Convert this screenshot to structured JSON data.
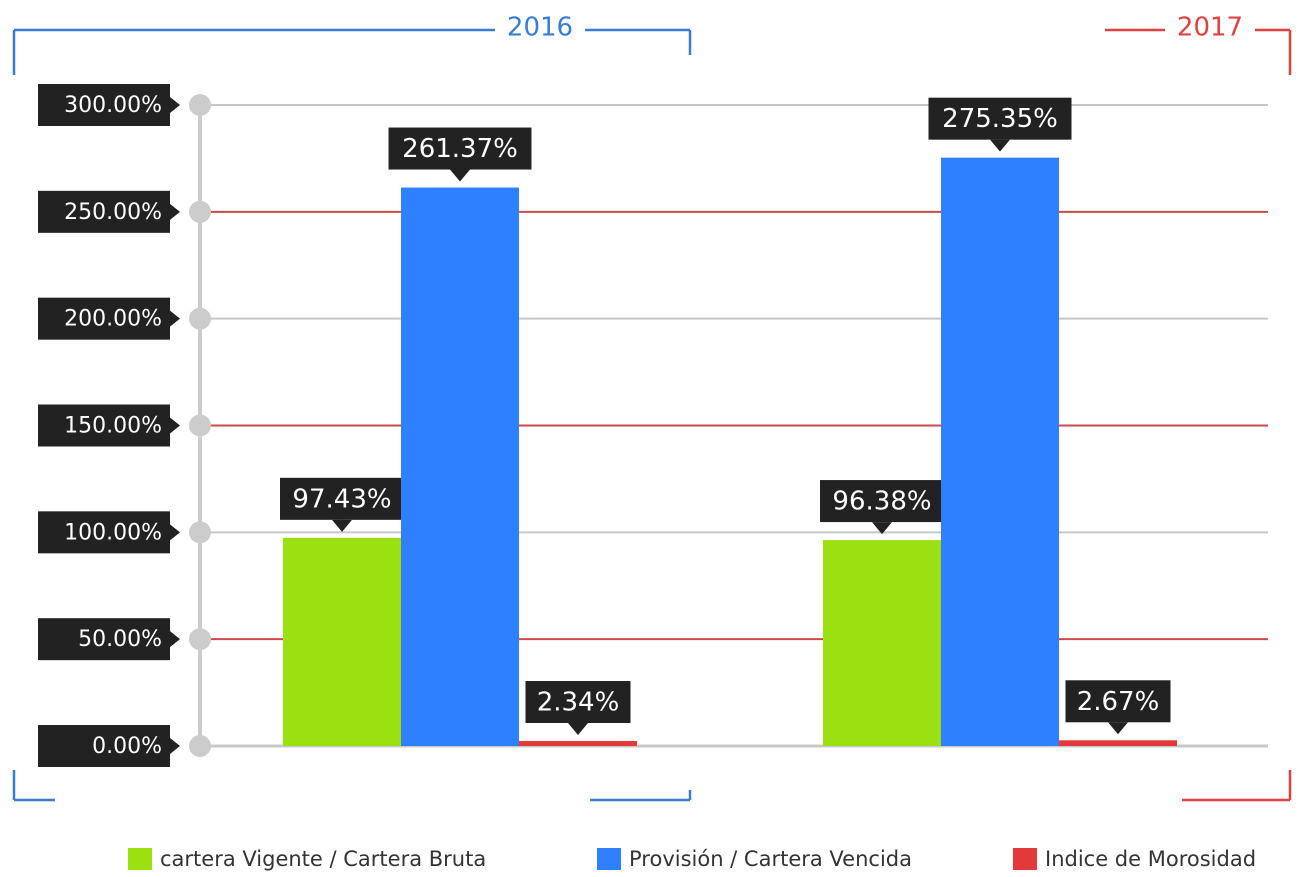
{
  "chart_data": {
    "type": "bar",
    "categories": [
      "2016",
      "2017"
    ],
    "series": [
      {
        "name": "cartera Vigente / Cartera Bruta",
        "color": "#9be010",
        "values": [
          97.43,
          96.38
        ],
        "value_labels": [
          "97.43%",
          "96.38%"
        ]
      },
      {
        "name": "Provisión / Cartera Vencida",
        "color": "#2f80ff",
        "values": [
          261.37,
          275.35
        ],
        "value_labels": [
          "261.37%",
          "275.35%"
        ]
      },
      {
        "name": "Indice de Morosidad",
        "color": "#e23a3a",
        "values": [
          2.34,
          2.67
        ],
        "value_labels": [
          "2.34%",
          "2.67%"
        ]
      }
    ],
    "category_colors": [
      "#3a7bd5",
      "#e04040"
    ],
    "ylim": [
      0,
      300
    ],
    "yticks": [
      {
        "value": 0,
        "label": "0.00%"
      },
      {
        "value": 50,
        "label": "50.00%"
      },
      {
        "value": 100,
        "label": "100.00%"
      },
      {
        "value": 150,
        "label": "150.00%"
      },
      {
        "value": 200,
        "label": "200.00%"
      },
      {
        "value": 250,
        "label": "250.00%"
      },
      {
        "value": 300,
        "label": "300.00%"
      }
    ],
    "grid": true,
    "legend": "bottom"
  }
}
